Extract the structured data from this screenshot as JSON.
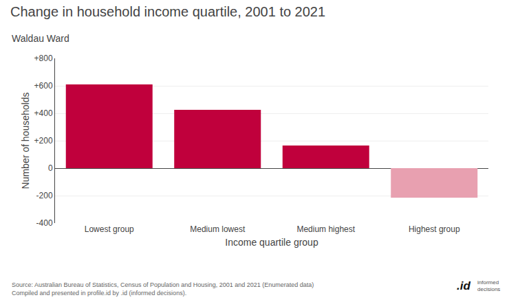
{
  "chart_data": {
    "type": "bar",
    "title": "Change in household income quartile, 2001 to 2021",
    "subtitle": "Waldau Ward",
    "categories": [
      "Lowest group",
      "Medium lowest",
      "Medium highest",
      "Highest group"
    ],
    "values": [
      610,
      425,
      165,
      -215
    ],
    "colors": [
      "#c0003c",
      "#c0003c",
      "#c0003c",
      "#e8a0b0"
    ],
    "xlabel": "Income quartile group",
    "ylabel": "Number of households",
    "ylim": [
      -400,
      800
    ],
    "yticks": [
      -400,
      -200,
      0,
      {
        "value": 200,
        "label": "+200"
      },
      {
        "value": 400,
        "label": "+400"
      },
      {
        "value": 600,
        "label": "+600"
      },
      {
        "value": 800,
        "label": "+800"
      }
    ],
    "grid": true,
    "annotations": [
      "Source: Australian Bureau of Statistics, Census of Population and Housing, 2001 and 2021 (Enumerated data)\nCompiled and presented in profile.id by .id (informed decisions).",
      ".id",
      "informed\ndecisions"
    ]
  }
}
